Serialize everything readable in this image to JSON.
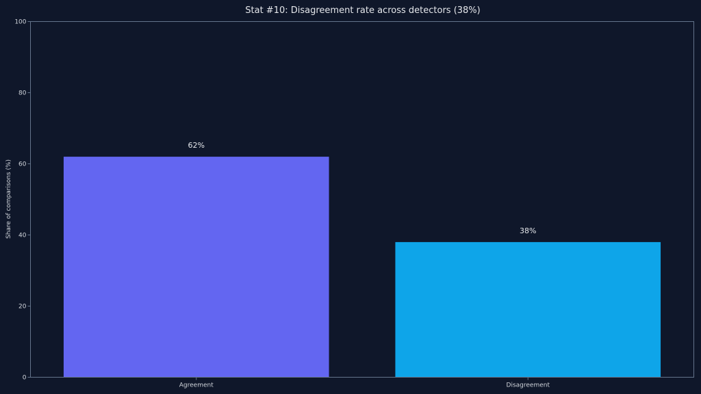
{
  "chart_data": {
    "type": "bar",
    "title": "Stat #10: Disagreement rate across detectors (38%)",
    "xlabel": "",
    "ylabel": "Share of comparisons (%)",
    "categories": [
      "Agreement",
      "Disagreement"
    ],
    "values": [
      62,
      38
    ],
    "value_labels": [
      "62%",
      "38%"
    ],
    "bar_colors": [
      "#6366f1",
      "#0ea5e9"
    ],
    "ylim": [
      0,
      100
    ],
    "yticks": [
      0,
      20,
      40,
      60,
      80,
      100
    ],
    "grid": false,
    "legend": "none"
  },
  "colors": {
    "background": "#0f172a",
    "axis": "#64748b",
    "text": "#e5e7eb"
  }
}
